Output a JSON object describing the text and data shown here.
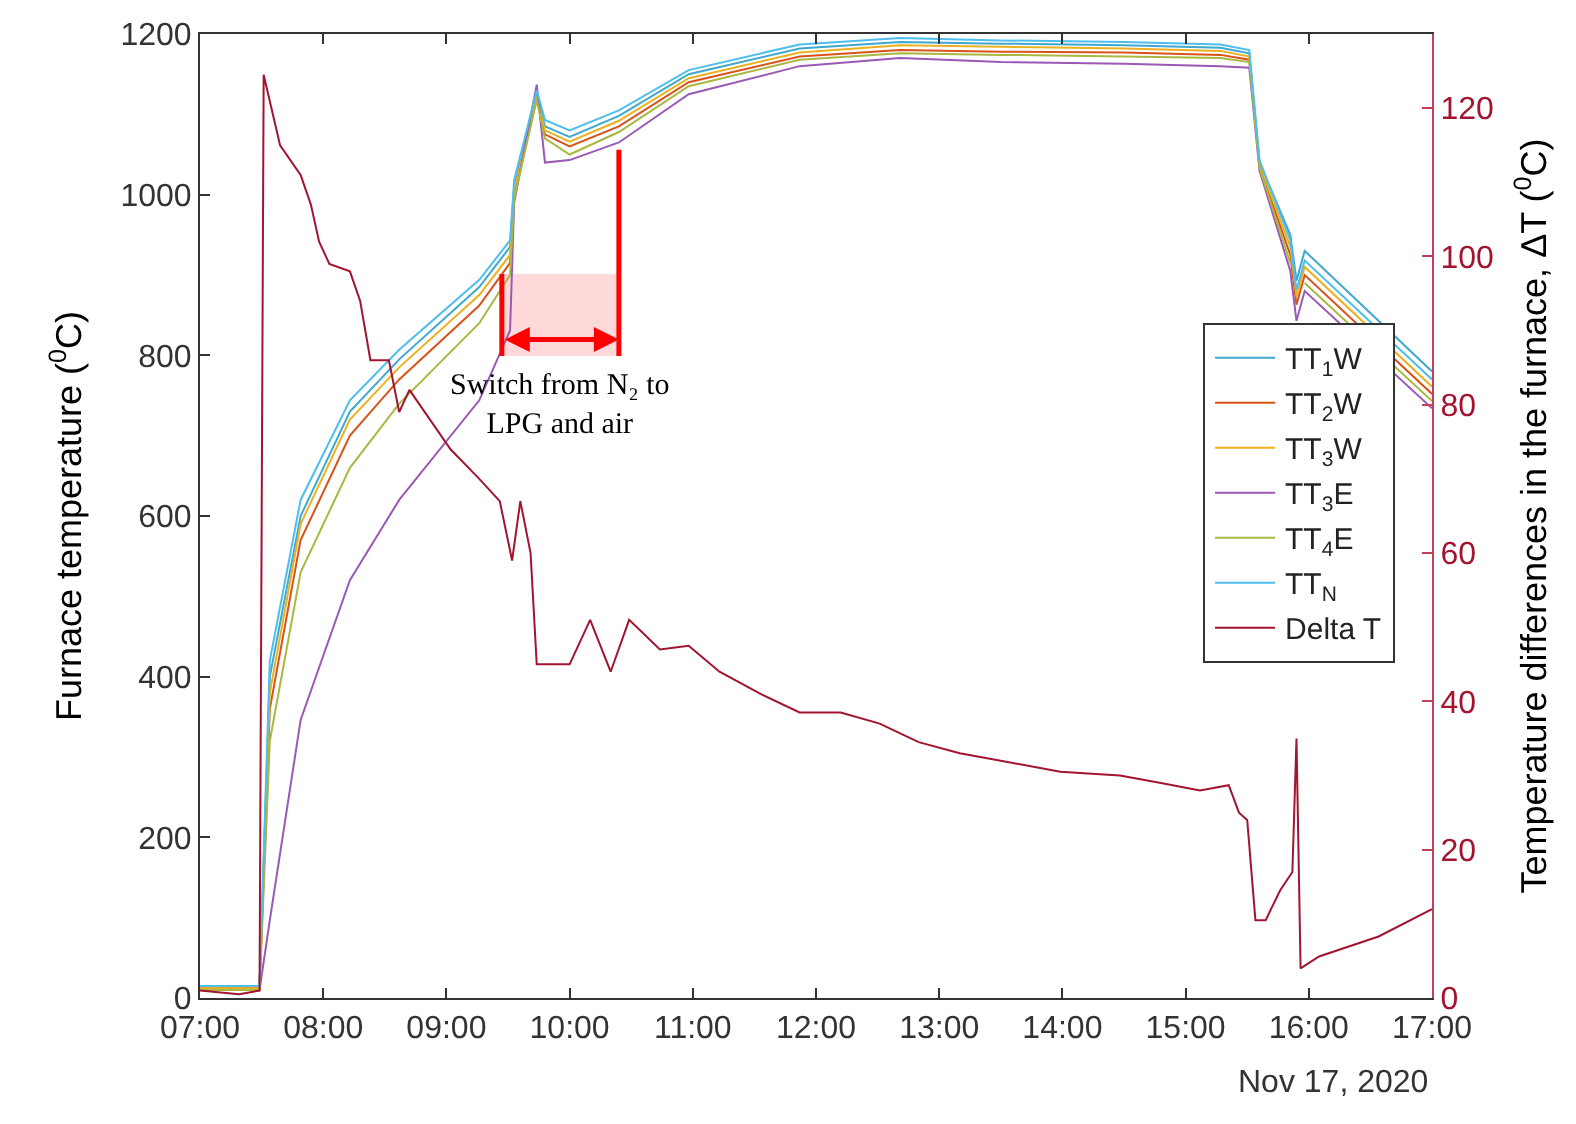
{
  "chart_data": {
    "type": "line",
    "ylabel": "Furnace temperature ($^{0}$C)",
    "y2label": "Temperature differences in the furnace, ΔT ($^{0}$C)",
    "annotations": [
      "Nov 17, 2020"
    ],
    "xlim": [
      "2020-11-17T07:00",
      "2020-11-17T17:00"
    ],
    "xticks": [
      {
        "value": "2020-11-17T07:00",
        "label": "07:00"
      },
      {
        "value": "2020-11-17T08:00",
        "label": "08:00"
      },
      {
        "value": "2020-11-17T09:00",
        "label": "09:00"
      },
      {
        "value": "2020-11-17T10:00",
        "label": "10:00"
      },
      {
        "value": "2020-11-17T11:00",
        "label": "11:00"
      },
      {
        "value": "2020-11-17T12:00",
        "label": "12:00"
      },
      {
        "value": "2020-11-17T13:00",
        "label": "13:00"
      },
      {
        "value": "2020-11-17T14:00",
        "label": "14:00"
      },
      {
        "value": "2020-11-17T15:00",
        "label": "15:00"
      },
      {
        "value": "2020-11-17T16:00",
        "label": "16:00"
      },
      {
        "value": "2020-11-17T17:00",
        "label": "17:00"
      }
    ],
    "ylim": [
      0,
      1200
    ],
    "yticks": [
      0,
      200,
      400,
      600,
      800,
      1000,
      1200
    ],
    "y2lim": [
      0,
      130
    ],
    "y2ticks": [
      0,
      20,
      40,
      60,
      80,
      100,
      120
    ],
    "legend": "right",
    "bands": [
      {
        "axis": "x",
        "from": "2020-11-17T09:27",
        "to": "2020-11-17T10:24",
        "label": "Switch from N₂ to LPG and air",
        "color": "#ff0000"
      }
    ],
    "x": [
      "2020-11-17T07:00",
      "2020-11-17T07:29",
      "2020-11-17T07:34",
      "2020-11-17T07:49",
      "2020-11-17T08:13",
      "2020-11-17T08:37",
      "2020-11-17T09:16",
      "2020-11-17T09:31",
      "2020-11-17T09:33",
      "2020-11-17T09:44",
      "2020-11-17T09:48",
      "2020-11-17T10:00",
      "2020-11-17T10:24",
      "2020-11-17T10:58",
      "2020-11-17T11:52",
      "2020-11-17T12:41",
      "2020-11-17T13:30",
      "2020-11-17T14:30",
      "2020-11-17T15:17",
      "2020-11-17T15:31",
      "2020-11-17T15:36",
      "2020-11-17T15:51",
      "2020-11-17T15:54",
      "2020-11-17T15:58",
      "2020-11-17T17:00"
    ],
    "series": [
      {
        "name": "TT$_{1}$W",
        "color": "#3fa8cf",
        "values": [
          15,
          15,
          400,
          600,
          730,
          795,
          885,
          935,
          1010,
          1125,
          1085,
          1072,
          1098,
          1150,
          1182,
          1190,
          1188,
          1186,
          1183,
          1176,
          1040,
          950,
          893,
          930,
          780
        ]
      },
      {
        "name": "TT$_{2}$W",
        "color": "#d95319",
        "values": [
          12,
          12,
          360,
          570,
          700,
          770,
          862,
          915,
          1000,
          1120,
          1075,
          1060,
          1085,
          1140,
          1172,
          1180,
          1178,
          1177,
          1174,
          1168,
          1035,
          925,
          863,
          900,
          752
        ]
      },
      {
        "name": "TT$_{3}$W",
        "color": "#edb120",
        "values": [
          12,
          12,
          380,
          590,
          720,
          785,
          875,
          925,
          1005,
          1122,
          1080,
          1066,
          1092,
          1145,
          1177,
          1186,
          1184,
          1182,
          1179,
          1172,
          1038,
          935,
          873,
          910,
          761
        ]
      },
      {
        "name": "TT$_{3}$E",
        "color": "#9b59b6",
        "values": [
          10,
          10,
          97,
          346,
          520,
          620,
          744,
          831,
          990,
          1137,
          1040,
          1043,
          1065,
          1125,
          1160,
          1170,
          1165,
          1163,
          1160,
          1158,
          1030,
          905,
          843,
          880,
          734
        ]
      },
      {
        "name": "TT$_{4}$E",
        "color": "#a8b840",
        "values": [
          10,
          10,
          320,
          530,
          660,
          740,
          840,
          900,
          995,
          1118,
          1070,
          1050,
          1078,
          1135,
          1168,
          1176,
          1174,
          1172,
          1170,
          1165,
          1033,
          915,
          null,
          890,
          743
        ]
      },
      {
        "name": "TT$_{N}$",
        "color": "#4dbeee",
        "values": [
          15,
          15,
          420,
          620,
          744,
          807,
          894,
          943,
          1018,
          1130,
          1093,
          1080,
          1105,
          1155,
          1187,
          1195,
          1192,
          1190,
          1187,
          1180,
          1043,
          943,
          881,
          918,
          770
        ]
      },
      {
        "name": "Delta T",
        "color": "#a2142f",
        "axis": "y2",
        "x": [
          "2020-11-17T07:00",
          "2020-11-17T07:19",
          "2020-11-17T07:29",
          "2020-11-17T07:31",
          "2020-11-17T07:39",
          "2020-11-17T07:49",
          "2020-11-17T07:54",
          "2020-11-17T07:58",
          "2020-11-17T08:03",
          "2020-11-17T08:13",
          "2020-11-17T08:18",
          "2020-11-17T08:23",
          "2020-11-17T08:32",
          "2020-11-17T08:37",
          "2020-11-17T08:42",
          "2020-11-17T08:52",
          "2020-11-17T09:02",
          "2020-11-17T09:16",
          "2020-11-17T09:26",
          "2020-11-17T09:32",
          "2020-11-17T09:36",
          "2020-11-17T09:41",
          "2020-11-17T09:44",
          "2020-11-17T09:50",
          "2020-11-17T10:00",
          "2020-11-17T10:10",
          "2020-11-17T10:20",
          "2020-11-17T10:29",
          "2020-11-17T10:44",
          "2020-11-17T10:58",
          "2020-11-17T11:13",
          "2020-11-17T11:33",
          "2020-11-17T11:52",
          "2020-11-17T12:12",
          "2020-11-17T12:31",
          "2020-11-17T12:50",
          "2020-11-17T13:10",
          "2020-11-17T13:30",
          "2020-11-17T13:59",
          "2020-11-17T14:28",
          "2020-11-17T14:48",
          "2020-11-17T15:07",
          "2020-11-17T15:21",
          "2020-11-17T15:26",
          "2020-11-17T15:30",
          "2020-11-17T15:34",
          "2020-11-17T15:39",
          "2020-11-17T15:46",
          "2020-11-17T15:52",
          "2020-11-17T15:54",
          "2020-11-17T15:56",
          "2020-11-17T16:05",
          "2020-11-17T16:34",
          "2020-11-17T17:00"
        ],
        "values": [
          1,
          0.5,
          1,
          124.5,
          115,
          111,
          107,
          102,
          99,
          98,
          94,
          86,
          86,
          79,
          82,
          78,
          74,
          70,
          67,
          59,
          67,
          60,
          45,
          45,
          45,
          51,
          44,
          51,
          47,
          47.5,
          44,
          41,
          38.5,
          38.5,
          37,
          34.5,
          33,
          32,
          30.5,
          30,
          29,
          28,
          28.7,
          25,
          24,
          10.5,
          10.5,
          14.5,
          17,
          35,
          4,
          5.6,
          8.3,
          12
        ]
      }
    ]
  }
}
